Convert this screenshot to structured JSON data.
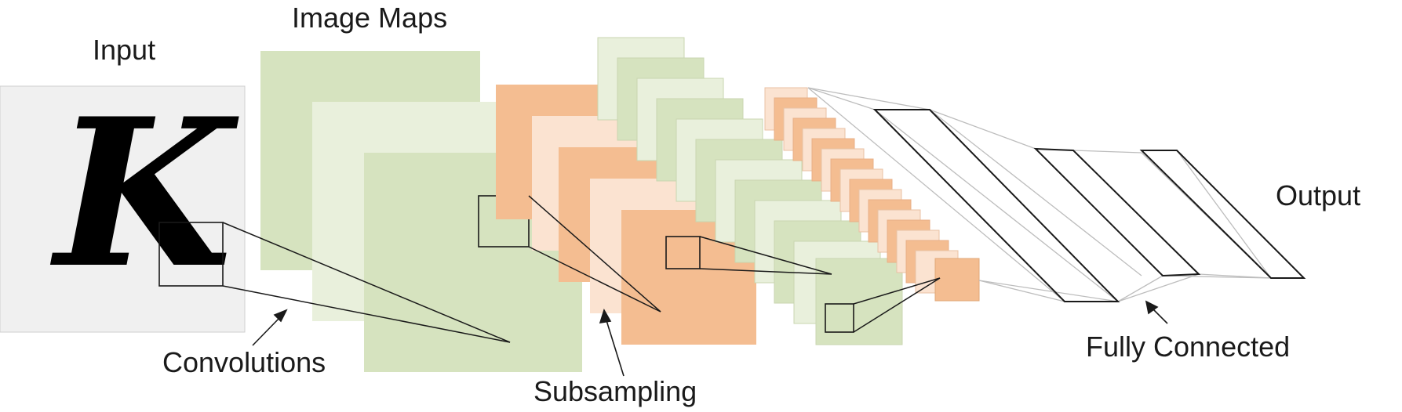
{
  "labels": {
    "input": "Input",
    "image_maps": "Image Maps",
    "output": "Output",
    "convolutions": "Convolutions",
    "subsampling": "Subsampling",
    "fully_connected": "Fully Connected"
  },
  "input_glyph": "K",
  "colors": {
    "input_bg": "#f0f0f0",
    "green_dark": "#d6e3bf",
    "green_light": "#e9f0dc",
    "orange_dark": "#f4bd91",
    "orange_light": "#fbe3d1",
    "edge": "#1a1a1a",
    "connection": "#bdbdbd"
  }
}
